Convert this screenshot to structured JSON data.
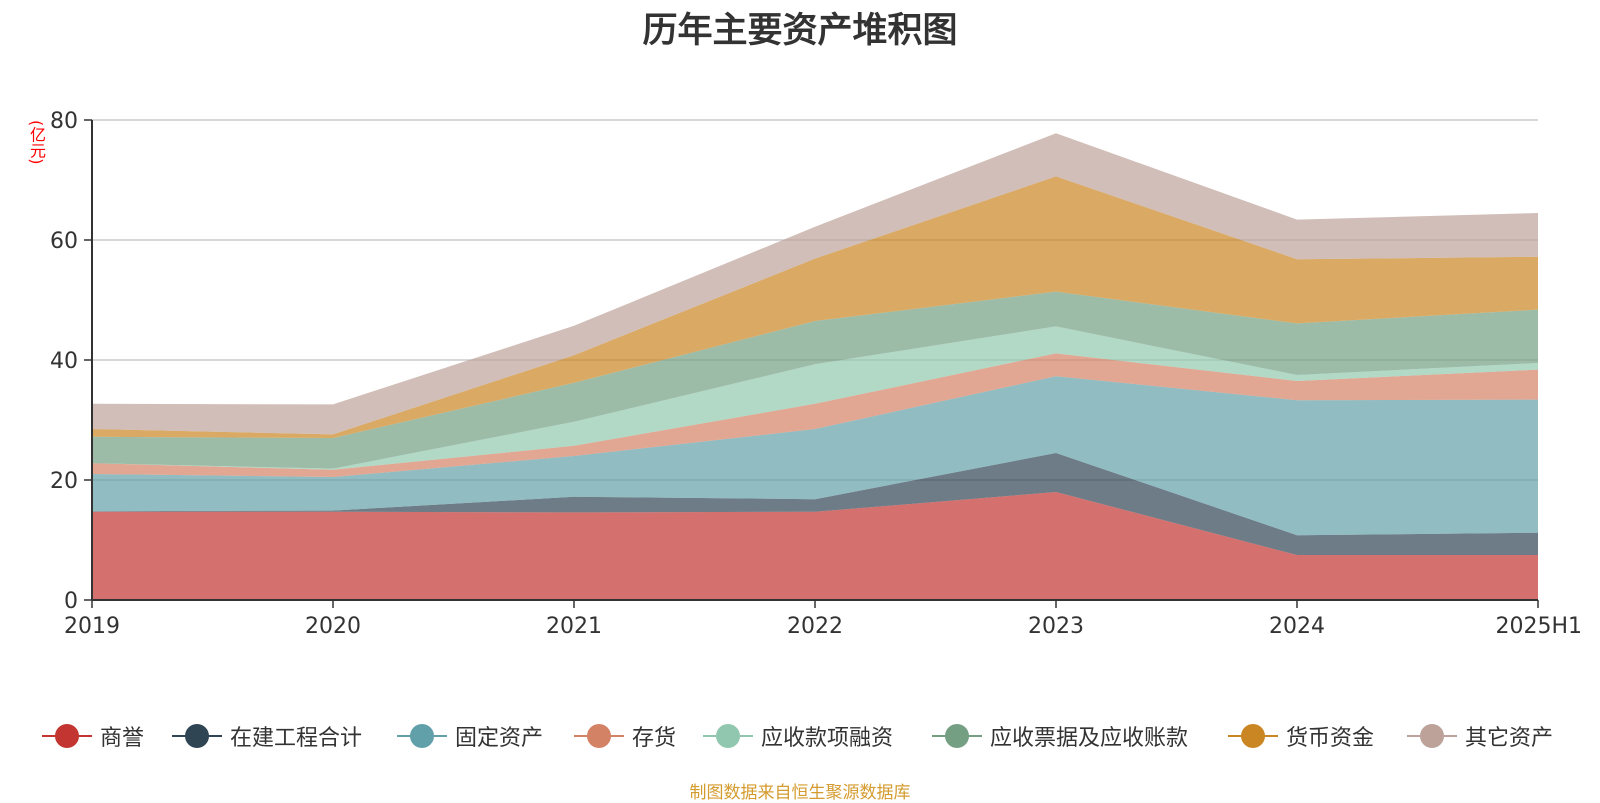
{
  "chart_data": {
    "type": "area",
    "stacked": true,
    "title": "历年主要资产堆积图",
    "unit": "(亿元)",
    "source": "制图数据来自恒生聚源数据库",
    "categories": [
      "2019",
      "2020",
      "2021",
      "2022",
      "2023",
      "2024",
      "2025H1"
    ],
    "y_ticks": [
      0,
      20,
      40,
      60,
      80
    ],
    "ylim": [
      0,
      80
    ],
    "grid": true,
    "legend_position": "bottom",
    "series": [
      {
        "name": "商誉",
        "color": "#c23531",
        "values": [
          14.7,
          14.7,
          14.6,
          14.7,
          18.0,
          7.5,
          7.5
        ]
      },
      {
        "name": "在建工程合计",
        "color": "#2f4554",
        "values": [
          0.1,
          0.2,
          2.6,
          2.1,
          6.5,
          3.3,
          3.7
        ]
      },
      {
        "name": "固定资产",
        "color": "#61a0a8",
        "values": [
          6.2,
          5.6,
          6.8,
          11.7,
          12.8,
          22.5,
          22.2
        ]
      },
      {
        "name": "存货",
        "color": "#d48265",
        "values": [
          1.8,
          1.2,
          1.7,
          4.2,
          3.8,
          3.2,
          5.0
        ]
      },
      {
        "name": "应收款项融资",
        "color": "#91c7ae",
        "values": [
          0,
          0.2,
          4.0,
          6.6,
          4.5,
          1.0,
          1.1
        ]
      },
      {
        "name": "应收票据及应收账款",
        "color": "#749f83",
        "values": [
          4.4,
          5.1,
          6.5,
          7.2,
          5.8,
          8.6,
          8.9
        ]
      },
      {
        "name": "货币资金",
        "color": "#ca8622",
        "values": [
          1.3,
          0.6,
          4.6,
          10.4,
          19.2,
          10.7,
          8.8
        ]
      },
      {
        "name": "其它资产",
        "color": "#bda29a",
        "values": [
          4.2,
          5.0,
          4.9,
          5.3,
          7.2,
          6.6,
          7.3
        ]
      }
    ]
  }
}
